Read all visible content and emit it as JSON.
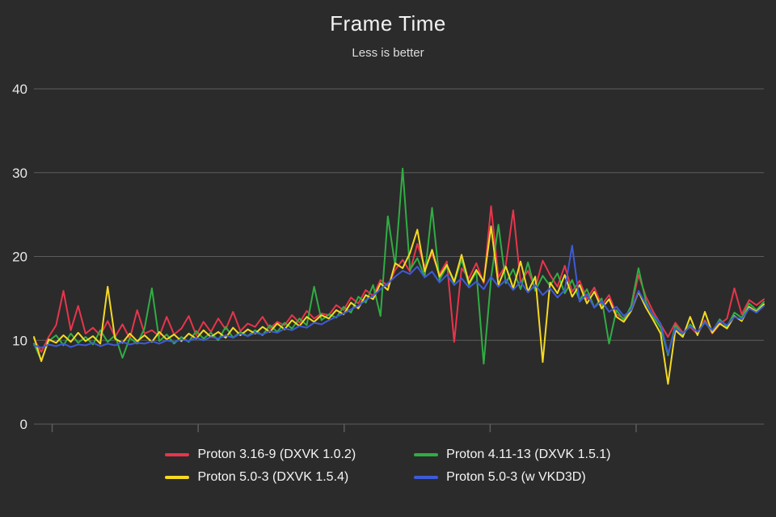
{
  "page": {
    "background": "#2b2b2b"
  },
  "chart_data": {
    "type": "line",
    "title": "Frame Time",
    "subtitle": "Less is better",
    "xlabel": "",
    "ylabel": "",
    "ylim": [
      0,
      40
    ],
    "yticks": [
      0,
      10,
      20,
      30,
      40
    ],
    "x_tick_labels": [],
    "x_tick_count": 5,
    "grid": "horizontal",
    "grid_color": "#5c5c5c",
    "text_color": "#e8e8e8",
    "legend_position": "bottom",
    "series": [
      {
        "name": "Proton 3.16-9 (DXVK 1.0.2)",
        "color": "#e8354c",
        "values": [
          10.2,
          8.6,
          10.4,
          11.8,
          15.9,
          11.2,
          14.1,
          10.8,
          11.5,
          10.6,
          12.3,
          10.4,
          11.9,
          10.2,
          13.6,
          10.8,
          11.2,
          10.5,
          12.8,
          10.7,
          11.4,
          12.9,
          10.6,
          12.2,
          11.0,
          12.6,
          11.3,
          13.4,
          11.1,
          12.0,
          11.6,
          12.8,
          11.4,
          12.2,
          11.8,
          13.0,
          12.1,
          13.5,
          12.6,
          13.2,
          13.0,
          14.2,
          13.6,
          15.1,
          14.4,
          16.0,
          15.3,
          17.2,
          16.5,
          18.4,
          19.6,
          18.2,
          21.5,
          18.8,
          20.3,
          17.9,
          19.4,
          9.8,
          18.6,
          17.4,
          19.2,
          16.8,
          26.0,
          17.5,
          19.0,
          25.5,
          16.9,
          18.3,
          16.2,
          19.5,
          17.8,
          16.4,
          18.9,
          15.8,
          17.1,
          14.9,
          16.3,
          14.2,
          15.4,
          13.1,
          12.6,
          13.8,
          17.8,
          15.2,
          13.4,
          11.9,
          10.4,
          12.1,
          10.9,
          11.6,
          10.7,
          12.4,
          10.8,
          11.9,
          12.6,
          16.2,
          13.1,
          14.8,
          14.2,
          14.9
        ]
      },
      {
        "name": "Proton 4.11-13 (DXVK 1.5.1)",
        "color": "#30ad44",
        "values": [
          9.6,
          7.6,
          9.9,
          10.6,
          9.4,
          10.8,
          9.7,
          10.4,
          9.5,
          11.2,
          9.8,
          10.6,
          7.9,
          10.3,
          9.6,
          11.4,
          16.2,
          9.9,
          10.7,
          9.6,
          10.4,
          9.8,
          11.1,
          10.2,
          10.9,
          10.0,
          11.6,
          10.3,
          11.0,
          10.5,
          11.2,
          10.6,
          11.8,
          11.0,
          12.1,
          11.4,
          12.6,
          11.8,
          16.4,
          12.4,
          13.1,
          12.7,
          14.0,
          13.3,
          15.2,
          14.5,
          16.6,
          12.9,
          24.8,
          18.9,
          30.5,
          18.4,
          19.8,
          17.6,
          25.8,
          17.2,
          18.8,
          16.9,
          19.6,
          16.6,
          18.2,
          7.2,
          17.4,
          23.8,
          16.8,
          18.5,
          16.1,
          19.3,
          15.9,
          17.7,
          16.5,
          18.0,
          15.6,
          17.2,
          14.8,
          16.1,
          13.9,
          15.0,
          9.6,
          13.6,
          12.4,
          14.1,
          18.6,
          14.6,
          12.8,
          11.5,
          8.2,
          11.8,
          10.6,
          11.9,
          10.9,
          12.2,
          11.0,
          12.5,
          11.6,
          13.3,
          12.7,
          14.4,
          13.6,
          14.6
        ]
      },
      {
        "name": "Proton 5.0-3 (DXVK 1.5.4)",
        "color": "#f4da22",
        "values": [
          10.4,
          7.5,
          10.1,
          9.7,
          10.6,
          9.8,
          10.9,
          9.9,
          10.5,
          9.6,
          16.4,
          10.2,
          9.7,
          10.8,
          9.9,
          10.6,
          9.8,
          11.0,
          10.1,
          10.7,
          9.9,
          10.8,
          10.2,
          11.2,
          10.4,
          11.0,
          10.3,
          11.5,
          10.6,
          11.3,
          10.8,
          11.6,
          11.0,
          12.0,
          11.3,
          12.4,
          11.7,
          12.8,
          12.2,
          13.0,
          12.6,
          13.6,
          13.1,
          14.5,
          13.8,
          15.4,
          14.9,
          16.8,
          16.0,
          19.2,
          18.6,
          20.4,
          23.2,
          18.2,
          20.8,
          17.6,
          19.0,
          17.0,
          20.2,
          16.8,
          18.4,
          17.0,
          23.6,
          16.6,
          18.8,
          16.2,
          19.4,
          15.8,
          17.6,
          7.4,
          16.9,
          15.6,
          17.8,
          15.2,
          16.6,
          14.4,
          15.8,
          13.8,
          14.9,
          12.8,
          12.2,
          13.5,
          15.8,
          13.9,
          12.4,
          10.8,
          4.8,
          11.2,
          10.4,
          12.8,
          10.6,
          13.4,
          10.9,
          12.0,
          11.4,
          12.9,
          12.3,
          14.0,
          13.4,
          14.3
        ]
      },
      {
        "name": "Proton 5.0-3 (w VKD3D)",
        "color": "#3d5bd9",
        "values": [
          9.4,
          9.1,
          9.5,
          9.3,
          9.6,
          9.2,
          9.5,
          9.4,
          9.7,
          9.3,
          9.6,
          9.4,
          9.8,
          9.5,
          9.7,
          9.6,
          9.9,
          9.6,
          10.0,
          9.8,
          10.1,
          9.9,
          10.3,
          10.0,
          10.4,
          10.2,
          10.6,
          10.3,
          10.8,
          10.5,
          10.9,
          10.7,
          11.1,
          10.9,
          11.4,
          11.2,
          11.7,
          11.5,
          12.1,
          11.9,
          12.4,
          12.8,
          13.2,
          13.7,
          14.1,
          14.8,
          15.3,
          16.1,
          16.8,
          17.6,
          18.3,
          17.9,
          18.8,
          17.5,
          18.2,
          16.9,
          17.8,
          16.6,
          17.4,
          16.3,
          17.0,
          16.1,
          17.6,
          16.4,
          17.2,
          16.0,
          17.0,
          15.7,
          16.6,
          15.4,
          16.2,
          15.1,
          16.0,
          21.3,
          14.6,
          15.5,
          13.9,
          14.7,
          13.4,
          14.0,
          12.9,
          13.6,
          15.9,
          14.3,
          13.0,
          12.0,
          8.4,
          11.4,
          10.8,
          11.7,
          11.0,
          12.1,
          11.2,
          12.3,
          11.8,
          12.8,
          12.5,
          13.8,
          13.3,
          14.1
        ]
      }
    ]
  }
}
